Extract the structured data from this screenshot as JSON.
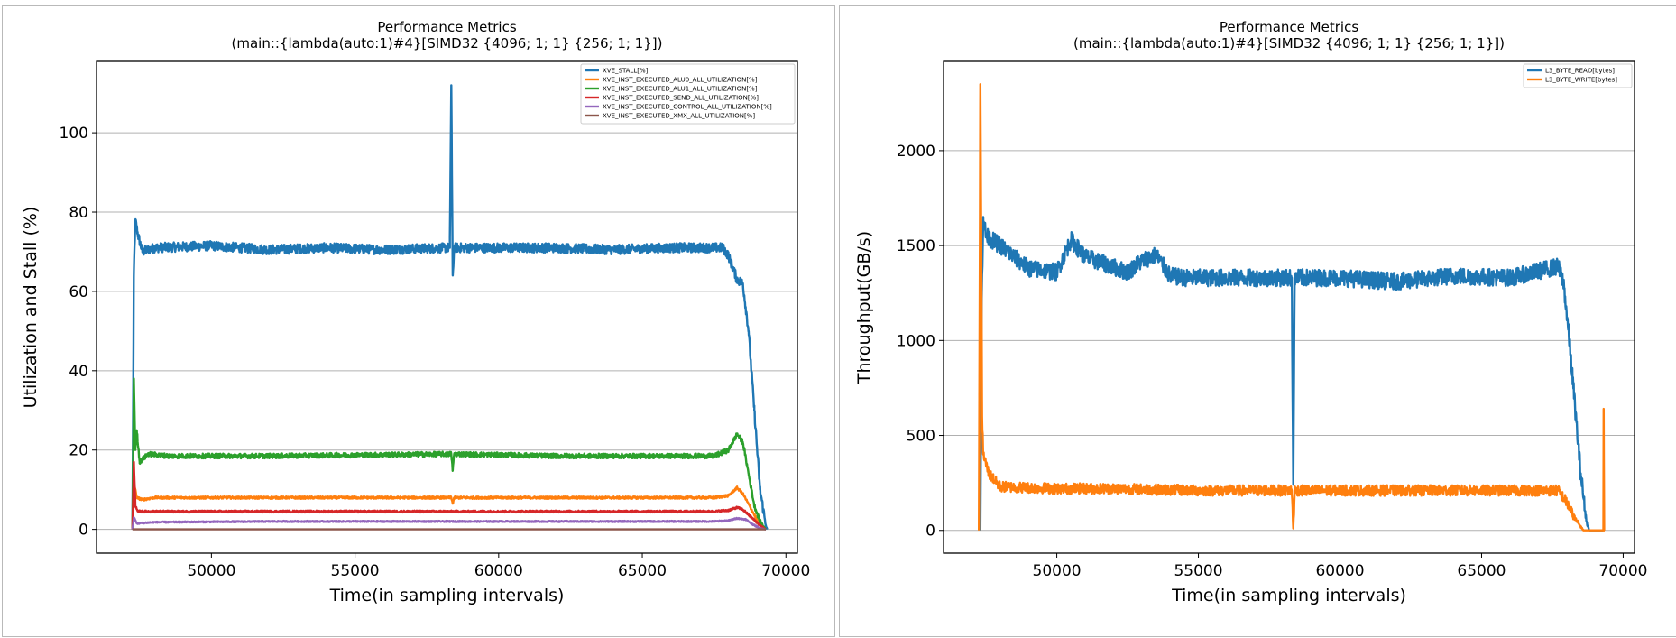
{
  "chart_data": [
    {
      "type": "line",
      "title": "Performance Metrics",
      "subtitle": "(main::{lambda(auto:1)#4}[SIMD32 {4096; 1; 1} {256; 1; 1}])",
      "xlabel": "Time(in sampling intervals)",
      "ylabel": "Utilization and Stall (%)",
      "xlim": [
        46000,
        70400
      ],
      "ylim": [
        -6,
        118
      ],
      "xticks": [
        50000,
        55000,
        60000,
        65000,
        70000
      ],
      "yticks": [
        0,
        20,
        40,
        60,
        80,
        100
      ],
      "grid": "horizontal",
      "legend_position": "top-right",
      "series": [
        {
          "name": "XVE_STALL[%]",
          "color": "#1f77b4",
          "x": [
            47250,
            47300,
            47350,
            47450,
            47600,
            48000,
            50000,
            52000,
            54000,
            56000,
            58300,
            58350,
            58400,
            58450,
            60000,
            62000,
            64000,
            66000,
            67800,
            68000,
            68300,
            68500,
            68700,
            68900,
            69100,
            69300,
            69350
          ],
          "y": [
            0,
            65,
            78,
            74,
            70,
            71,
            71.5,
            70.5,
            71,
            70.5,
            71,
            112,
            64,
            71,
            71,
            71,
            70.5,
            71,
            71,
            69,
            63,
            62,
            50,
            30,
            10,
            1,
            0
          ],
          "noise": 1.2
        },
        {
          "name": "XVE_INST_EXECUTED_ALU0_ALL_UTILIZATION[%]",
          "color": "#ff7f0e",
          "x": [
            47250,
            47300,
            47400,
            47600,
            48000,
            52000,
            58350,
            58400,
            58450,
            62000,
            67500,
            68000,
            68300,
            68500,
            68800,
            69100,
            69300
          ],
          "y": [
            0,
            12,
            8,
            7.5,
            8,
            8,
            8,
            6.5,
            8,
            8,
            8,
            8.5,
            10.5,
            9,
            5,
            1,
            0
          ],
          "noise": 0.3
        },
        {
          "name": "XVE_INST_EXECUTED_ALU1_ALL_UTILIZATION[%]",
          "color": "#2ca02c",
          "x": [
            47250,
            47300,
            47350,
            47400,
            47500,
            47800,
            48500,
            52000,
            58350,
            58400,
            58450,
            62000,
            67500,
            68000,
            68300,
            68500,
            68700,
            68900,
            69100,
            69300
          ],
          "y": [
            0,
            38,
            20,
            25,
            17,
            19,
            18.5,
            18.5,
            19,
            15,
            19,
            18.5,
            18.5,
            20,
            24,
            22,
            14,
            6,
            2,
            0
          ],
          "noise": 0.6
        },
        {
          "name": "XVE_INST_EXECUTED_SEND_ALL_UTILIZATION[%]",
          "color": "#d62728",
          "x": [
            47250,
            47300,
            47350,
            47450,
            48000,
            52000,
            62000,
            67500,
            68000,
            68300,
            68500,
            68800,
            69100,
            69300
          ],
          "y": [
            0,
            17,
            6,
            4.5,
            4.5,
            4.5,
            4.5,
            4.5,
            4.8,
            5.5,
            5,
            3,
            1,
            0
          ],
          "noise": 0.25
        },
        {
          "name": "XVE_INST_EXECUTED_CONTROL_ALL_UTILIZATION[%]",
          "color": "#9467bd",
          "x": [
            47250,
            47300,
            47400,
            48000,
            52000,
            62000,
            67500,
            68000,
            68300,
            68600,
            68900,
            69100,
            69300
          ],
          "y": [
            0,
            3,
            1.5,
            1.8,
            2,
            2,
            2,
            2.2,
            2.8,
            2.5,
            1,
            0.3,
            0
          ],
          "noise": 0.15
        },
        {
          "name": "XVE_INST_EXECUTED_XMX_ALL_UTILIZATION[%]",
          "color": "#8c564b",
          "x": [
            47250,
            69300
          ],
          "y": [
            0,
            0
          ],
          "noise": 0
        }
      ]
    },
    {
      "type": "line",
      "title": "Performance Metrics",
      "subtitle": "(main::{lambda(auto:1)#4}[SIMD32 {4096; 1; 1} {256; 1; 1}])",
      "xlabel": "Time(in sampling intervals)",
      "ylabel": "Throughput(GB/s)",
      "xlim": [
        46000,
        70400
      ],
      "ylim": [
        -120,
        2470
      ],
      "xticks": [
        50000,
        55000,
        60000,
        65000,
        70000
      ],
      "yticks": [
        0,
        500,
        1000,
        1500,
        2000
      ],
      "grid": "horizontal",
      "legend_position": "top-right",
      "series": [
        {
          "name": "L3_BYTE_READ[bytes]",
          "color": "#1f77b4",
          "x": [
            47300,
            47350,
            47400,
            47500,
            48000,
            49000,
            50000,
            50500,
            51000,
            52500,
            53000,
            53500,
            54000,
            54500,
            55000,
            58300,
            58350,
            58400,
            60000,
            62000,
            64000,
            66000,
            67700,
            67900,
            68100,
            68300,
            68500,
            68700,
            68800,
            69300
          ],
          "y": [
            0,
            1250,
            1650,
            1550,
            1500,
            1380,
            1360,
            1530,
            1440,
            1360,
            1420,
            1450,
            1340,
            1330,
            1330,
            1330,
            240,
            1330,
            1330,
            1310,
            1340,
            1330,
            1390,
            1300,
            1000,
            650,
            300,
            50,
            0,
            0
          ],
          "noise": 45
        },
        {
          "name": "L3_BYTE_WRITE[bytes]",
          "color": "#ff7f0e",
          "x": [
            47250,
            47300,
            47330,
            47360,
            47400,
            47600,
            48000,
            50000,
            52000,
            55000,
            58300,
            58350,
            58400,
            60000,
            62000,
            64000,
            66000,
            67700,
            68000,
            68300,
            68600,
            68800,
            69300,
            69310,
            69330,
            69350
          ],
          "y": [
            0,
            2350,
            1500,
            600,
            400,
            300,
            230,
            220,
            220,
            210,
            210,
            10,
            210,
            210,
            210,
            210,
            210,
            210,
            150,
            60,
            0,
            0,
            0,
            640,
            0,
            0
          ],
          "noise": 28
        }
      ]
    }
  ]
}
